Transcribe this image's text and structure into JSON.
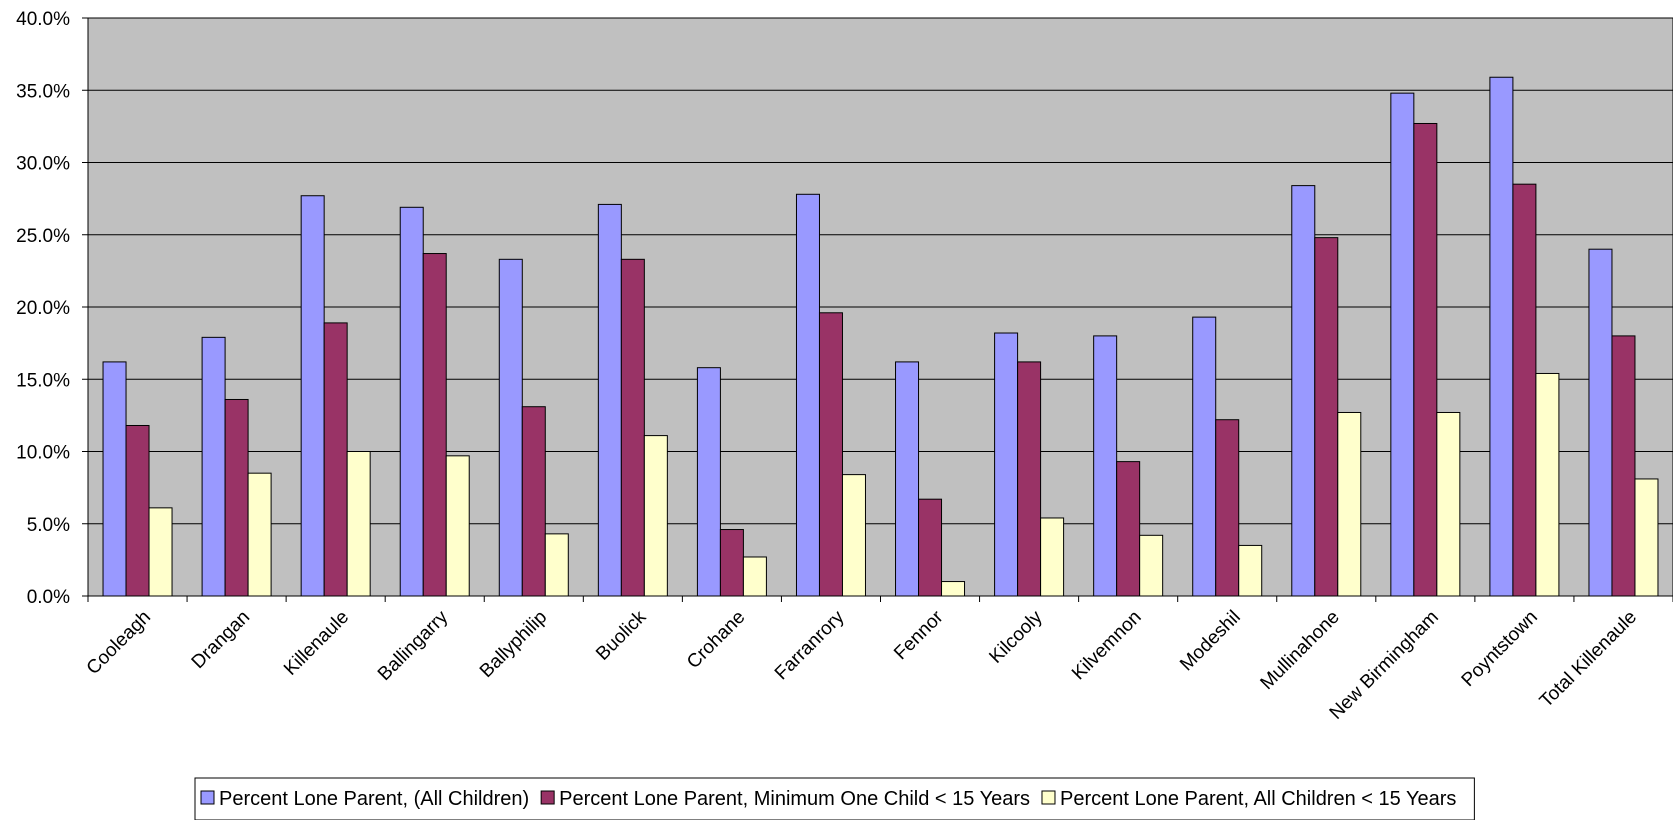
{
  "chart_data": {
    "type": "bar",
    "title": "",
    "xlabel": "",
    "ylabel": "",
    "ylim": [
      0,
      40
    ],
    "y_ticks": [
      "0.0%",
      "5.0%",
      "10.0%",
      "15.0%",
      "20.0%",
      "25.0%",
      "30.0%",
      "35.0%",
      "40.0%"
    ],
    "grid": true,
    "legend_position": "bottom",
    "plot_background": "#c0c0c0",
    "categories": [
      "Cooleagh",
      "Drangan",
      "Killenaule",
      "Ballingarry",
      "Ballyphilip",
      "Buolick",
      "Crohane",
      "Farranrory",
      "Fennor",
      "Kilcooly",
      "Kilvemnon",
      "Modeshil",
      "Mullinahone",
      "New Birmingham",
      "Poyntstown",
      "Total Killenaule"
    ],
    "series": [
      {
        "name": "Percent Lone Parent, (All Children)",
        "color": "#9999ff",
        "values": [
          16.2,
          17.9,
          27.7,
          26.9,
          23.3,
          27.1,
          15.8,
          27.8,
          16.2,
          18.2,
          18.0,
          19.3,
          28.4,
          34.8,
          35.9,
          24.0
        ]
      },
      {
        "name": "Percent Lone Parent, Minimum One Child < 15 Years",
        "color": "#993366",
        "values": [
          11.8,
          13.6,
          18.9,
          23.7,
          13.1,
          23.3,
          4.6,
          19.6,
          6.7,
          16.2,
          9.3,
          12.2,
          24.8,
          32.7,
          28.5,
          18.0
        ]
      },
      {
        "name": "Percent Lone Parent, All Children < 15 Years",
        "color": "#ffffcc",
        "values": [
          6.1,
          8.5,
          10.0,
          9.7,
          4.3,
          11.1,
          2.7,
          8.4,
          1.0,
          5.4,
          4.2,
          3.5,
          12.7,
          12.7,
          15.4,
          8.1
        ]
      }
    ]
  }
}
